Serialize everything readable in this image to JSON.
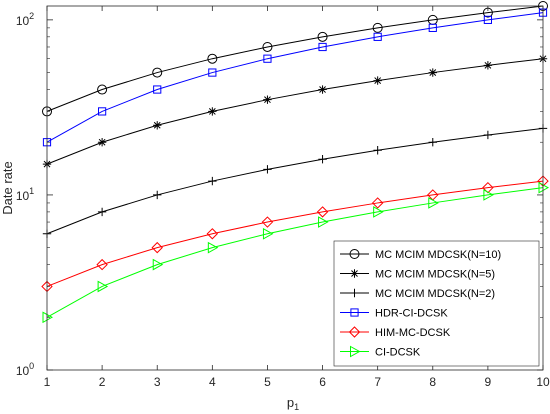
{
  "chart_data": {
    "type": "line",
    "title": "",
    "xlabel": "p",
    "xlabel_sub": "1",
    "ylabel": "Date rate",
    "y_scale": "log",
    "xlim": [
      1,
      10
    ],
    "ylim": [
      1,
      120
    ],
    "x_ticks": [
      "1",
      "2",
      "3",
      "4",
      "5",
      "6",
      "7",
      "8",
      "9",
      "10"
    ],
    "y_ticks": [
      {
        "value": 1,
        "base": "10",
        "exp": "0"
      },
      {
        "value": 10,
        "base": "10",
        "exp": "1"
      },
      {
        "value": 100,
        "base": "10",
        "exp": "2"
      }
    ],
    "grid": false,
    "legend_position": "lower-right",
    "x": [
      1,
      2,
      3,
      4,
      5,
      6,
      7,
      8,
      9,
      10
    ],
    "series": [
      {
        "name": "MC MCIM MDCSK(N=10)",
        "color": "#000000",
        "marker": "circle",
        "values": [
          30,
          40,
          50,
          60,
          70,
          80,
          90,
          100,
          110,
          120
        ]
      },
      {
        "name": "MC MCIM MDCSK(N=5)",
        "color": "#000000",
        "marker": "asterisk",
        "values": [
          15,
          20,
          25,
          30,
          35,
          40,
          45,
          50,
          55,
          60
        ]
      },
      {
        "name": "MC MCIM MDCSK(N=2)",
        "color": "#000000",
        "marker": "plus",
        "values": [
          6,
          8,
          10,
          12,
          14,
          16,
          18,
          20,
          22,
          24
        ]
      },
      {
        "name": "HDR-CI-DCSK",
        "color": "#0000ff",
        "marker": "square",
        "values": [
          20,
          30,
          40,
          50,
          60,
          70,
          80,
          90,
          100,
          110
        ]
      },
      {
        "name": "HIM-MC-DCSK",
        "color": "#ff0000",
        "marker": "diamond",
        "values": [
          3,
          4,
          5,
          6,
          7,
          8,
          9,
          10,
          11,
          12
        ]
      },
      {
        "name": "CI-DCSK",
        "color": "#00ff00",
        "marker": "triangle-right",
        "values": [
          2,
          3,
          4,
          5,
          6,
          7,
          8,
          9,
          10,
          11
        ]
      }
    ]
  }
}
